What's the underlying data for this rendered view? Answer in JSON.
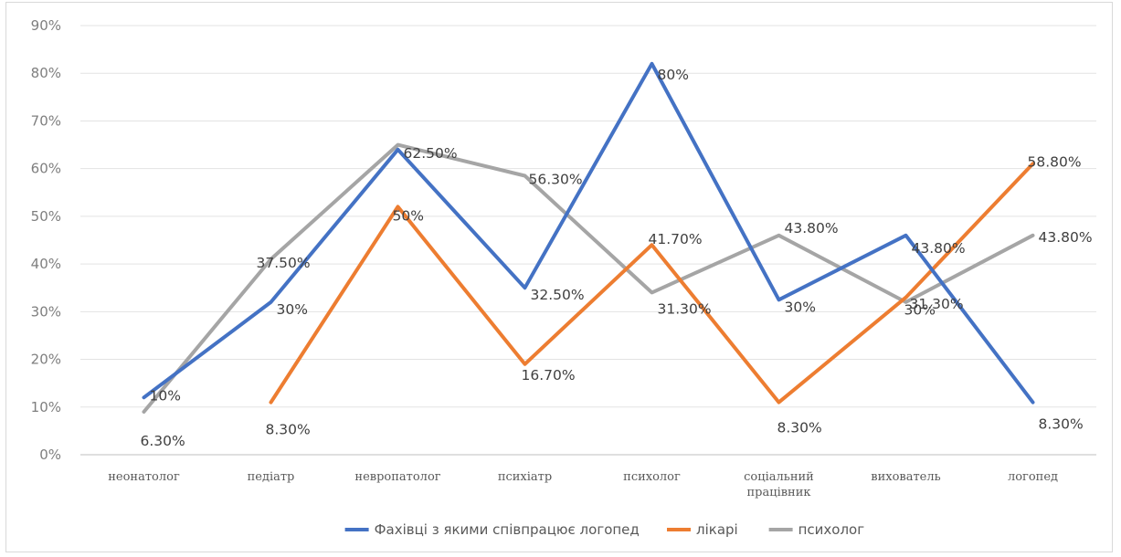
{
  "chart_data": {
    "type": "line",
    "title": "",
    "xlabel": "",
    "ylabel": "",
    "ylim": [
      0,
      90
    ],
    "y_ticks": [
      "0%",
      "10%",
      "20%",
      "30%",
      "40%",
      "50%",
      "60%",
      "70%",
      "80%",
      "90%"
    ],
    "grid": true,
    "legend_position": "bottom",
    "categories": [
      [
        "неонатолог"
      ],
      [
        "педіатр"
      ],
      [
        "невропатолог"
      ],
      [
        "психіатр"
      ],
      [
        "психолог"
      ],
      [
        "соціальний",
        "працівник"
      ],
      [
        "вихователь"
      ],
      [
        "логопед"
      ]
    ],
    "series": [
      {
        "name": "Фахівці з якими співпрацює логопед",
        "color": "#4472c4",
        "values": [
          12,
          32,
          64,
          35,
          82,
          32.5,
          46,
          11
        ],
        "labels": [
          "10%",
          "30%",
          "62.50%",
          "32.50%",
          "80%",
          "30%",
          "43.80%",
          "8.30%"
        ]
      },
      {
        "name": "лікарі",
        "color": "#ed7d31",
        "values": [
          null,
          11,
          52,
          19,
          44,
          11,
          33,
          61
        ],
        "labels": [
          null,
          "8.30%",
          "50%",
          "16.70%",
          "41.70%",
          "8.30%",
          "30%",
          "58.80%"
        ]
      },
      {
        "name": "психолог",
        "color": "#a5a5a5",
        "values": [
          9,
          41,
          65,
          58.5,
          34,
          46,
          32,
          46
        ],
        "labels": [
          "6.30%",
          "37.50%",
          "",
          "56.30%",
          "31.30%",
          "43.80%",
          "31.30%",
          "43.80%"
        ]
      }
    ]
  }
}
